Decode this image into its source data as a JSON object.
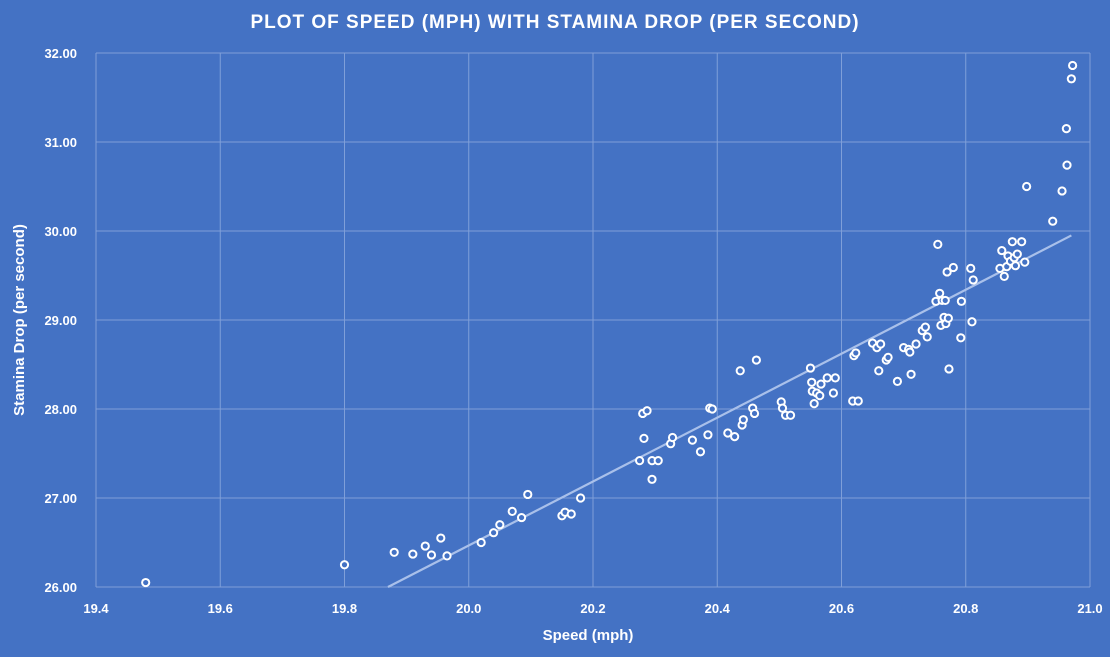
{
  "chart_data": {
    "type": "scatter",
    "title": "PLOT OF SPEED (MPH) WITH STAMINA DROP (PER SECOND)",
    "xlabel": "Speed (mph)",
    "ylabel": "Stamina Drop (per second)",
    "xlim": [
      19.4,
      21.0
    ],
    "ylim": [
      26.0,
      32.0
    ],
    "x_ticks": [
      "19.4",
      "19.6",
      "19.8",
      "20.0",
      "20.2",
      "20.4",
      "20.6",
      "20.8",
      "21.0"
    ],
    "y_ticks": [
      "26.00",
      "27.00",
      "28.00",
      "29.00",
      "30.00",
      "31.00",
      "32.00"
    ],
    "grid": true,
    "trendline": {
      "type": "linear",
      "x": [
        19.87,
        20.97
      ],
      "y": [
        26.0,
        29.95
      ]
    },
    "points": [
      [
        19.48,
        26.05
      ],
      [
        19.8,
        26.25
      ],
      [
        19.88,
        26.39
      ],
      [
        19.91,
        26.37
      ],
      [
        19.93,
        26.46
      ],
      [
        19.94,
        26.36
      ],
      [
        19.955,
        26.55
      ],
      [
        19.965,
        26.35
      ],
      [
        20.02,
        26.5
      ],
      [
        20.04,
        26.61
      ],
      [
        20.05,
        26.7
      ],
      [
        20.07,
        26.85
      ],
      [
        20.085,
        26.78
      ],
      [
        20.095,
        27.04
      ],
      [
        20.15,
        26.8
      ],
      [
        20.155,
        26.84
      ],
      [
        20.165,
        26.82
      ],
      [
        20.18,
        27.0
      ],
      [
        20.275,
        27.42
      ],
      [
        20.28,
        27.95
      ],
      [
        20.282,
        27.67
      ],
      [
        20.287,
        27.98
      ],
      [
        20.295,
        27.42
      ],
      [
        20.295,
        27.21
      ],
      [
        20.305,
        27.42
      ],
      [
        20.325,
        27.61
      ],
      [
        20.328,
        27.68
      ],
      [
        20.36,
        27.65
      ],
      [
        20.373,
        27.52
      ],
      [
        20.385,
        27.71
      ],
      [
        20.388,
        28.01
      ],
      [
        20.392,
        28.0
      ],
      [
        20.417,
        27.73
      ],
      [
        20.428,
        27.69
      ],
      [
        20.437,
        28.43
      ],
      [
        20.44,
        27.82
      ],
      [
        20.442,
        27.88
      ],
      [
        20.457,
        28.01
      ],
      [
        20.46,
        27.95
      ],
      [
        20.463,
        28.55
      ],
      [
        20.503,
        28.08
      ],
      [
        20.505,
        28.01
      ],
      [
        20.51,
        27.93
      ],
      [
        20.518,
        27.93
      ],
      [
        20.55,
        28.46
      ],
      [
        20.552,
        28.3
      ],
      [
        20.553,
        28.2
      ],
      [
        20.556,
        28.06
      ],
      [
        20.56,
        28.18
      ],
      [
        20.565,
        28.15
      ],
      [
        20.567,
        28.28
      ],
      [
        20.577,
        28.35
      ],
      [
        20.587,
        28.18
      ],
      [
        20.59,
        28.35
      ],
      [
        20.618,
        28.09
      ],
      [
        20.62,
        28.6
      ],
      [
        20.623,
        28.63
      ],
      [
        20.627,
        28.09
      ],
      [
        20.65,
        28.74
      ],
      [
        20.657,
        28.69
      ],
      [
        20.66,
        28.43
      ],
      [
        20.663,
        28.73
      ],
      [
        20.672,
        28.55
      ],
      [
        20.675,
        28.58
      ],
      [
        20.69,
        28.31
      ],
      [
        20.7,
        28.69
      ],
      [
        20.708,
        28.67
      ],
      [
        20.71,
        28.64
      ],
      [
        20.712,
        28.39
      ],
      [
        20.72,
        28.73
      ],
      [
        20.73,
        28.88
      ],
      [
        20.735,
        28.92
      ],
      [
        20.738,
        28.81
      ],
      [
        20.752,
        29.21
      ],
      [
        20.755,
        29.85
      ],
      [
        20.758,
        29.3
      ],
      [
        20.76,
        28.94
      ],
      [
        20.762,
        29.22
      ],
      [
        20.765,
        29.03
      ],
      [
        20.767,
        29.22
      ],
      [
        20.768,
        28.96
      ],
      [
        20.77,
        29.54
      ],
      [
        20.772,
        29.02
      ],
      [
        20.773,
        28.45
      ],
      [
        20.78,
        29.59
      ],
      [
        20.792,
        28.8
      ],
      [
        20.793,
        29.21
      ],
      [
        20.808,
        29.58
      ],
      [
        20.81,
        28.98
      ],
      [
        20.812,
        29.45
      ],
      [
        20.855,
        29.58
      ],
      [
        20.858,
        29.78
      ],
      [
        20.862,
        29.49
      ],
      [
        20.866,
        29.6
      ],
      [
        20.868,
        29.72
      ],
      [
        20.872,
        29.66
      ],
      [
        20.875,
        29.88
      ],
      [
        20.878,
        29.7
      ],
      [
        20.88,
        29.61
      ],
      [
        20.883,
        29.74
      ],
      [
        20.89,
        29.88
      ],
      [
        20.895,
        29.65
      ],
      [
        20.898,
        30.5
      ],
      [
        20.94,
        30.11
      ],
      [
        20.955,
        30.45
      ],
      [
        20.962,
        31.15
      ],
      [
        20.963,
        30.74
      ],
      [
        20.97,
        31.71
      ],
      [
        20.972,
        31.86
      ]
    ]
  }
}
